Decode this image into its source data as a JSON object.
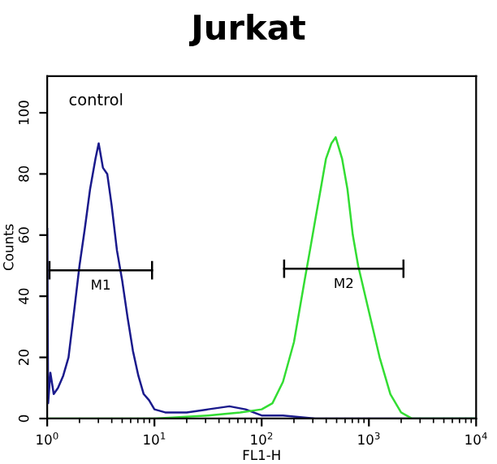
{
  "chart_data": {
    "type": "line",
    "title": "Jurkat",
    "xlabel": "FL1-H",
    "ylabel": "Counts",
    "log": "x",
    "xlim": [
      1,
      10000
    ],
    "ylim": [
      0,
      112
    ],
    "xticks": [
      {
        "value": 1,
        "label": "10$^{0}$"
      },
      {
        "value": 10,
        "label": "10$^{1}$"
      },
      {
        "value": 100,
        "label": "10$^{2}$"
      },
      {
        "value": 1000,
        "label": "10$^{3}$"
      },
      {
        "value": 10000,
        "label": "10$^{4}$"
      }
    ],
    "yticks": [
      0,
      20,
      40,
      60,
      80,
      100
    ],
    "grid": false,
    "marker": "none",
    "line_style": "solid",
    "series": [
      {
        "color": "#1a1a8c",
        "x": [
          1,
          1.02,
          1.07,
          1.15,
          1.26,
          1.41,
          1.58,
          1.78,
          2.0,
          2.24,
          2.51,
          2.82,
          3.02,
          3.31,
          3.63,
          3.98,
          4.47,
          5.01,
          5.62,
          6.31,
          7.08,
          7.94,
          8.91,
          10,
          12.6,
          20,
          31.6,
          50,
          70.8,
          100,
          158,
          316,
          1000,
          10000
        ],
        "values": [
          62,
          5,
          15,
          8,
          10,
          14,
          20,
          35,
          50,
          62,
          75,
          85,
          90,
          82,
          80,
          70,
          55,
          45,
          33,
          22,
          14,
          8,
          6,
          3,
          2,
          2,
          3,
          4,
          3,
          1,
          1,
          0,
          0,
          0
        ]
      },
      {
        "color": "#33dd33",
        "x": [
          1,
          10,
          31.6,
          63.1,
          100,
          126,
          158,
          200,
          251,
          282,
          316,
          355,
          398,
          447,
          490,
          562,
          631,
          708,
          794,
          1000,
          1259,
          1585,
          1995,
          2512,
          10000
        ],
        "values": [
          0,
          0,
          1,
          2,
          3,
          5,
          12,
          25,
          45,
          55,
          65,
          75,
          85,
          90,
          92,
          85,
          75,
          60,
          50,
          35,
          20,
          8,
          2,
          0,
          0
        ]
      },
      {
        "name": "M1",
        "color": "#000000",
        "x": [
          1.05,
          9.5
        ],
        "values": [
          48.5,
          48.5
        ],
        "errors": [
          3,
          3
        ]
      },
      {
        "name": "M2",
        "color": "#000000",
        "x": [
          162,
          2100
        ],
        "values": [
          49,
          49
        ],
        "errors": [
          3,
          3
        ]
      }
    ],
    "annotations": [
      "control"
    ]
  }
}
